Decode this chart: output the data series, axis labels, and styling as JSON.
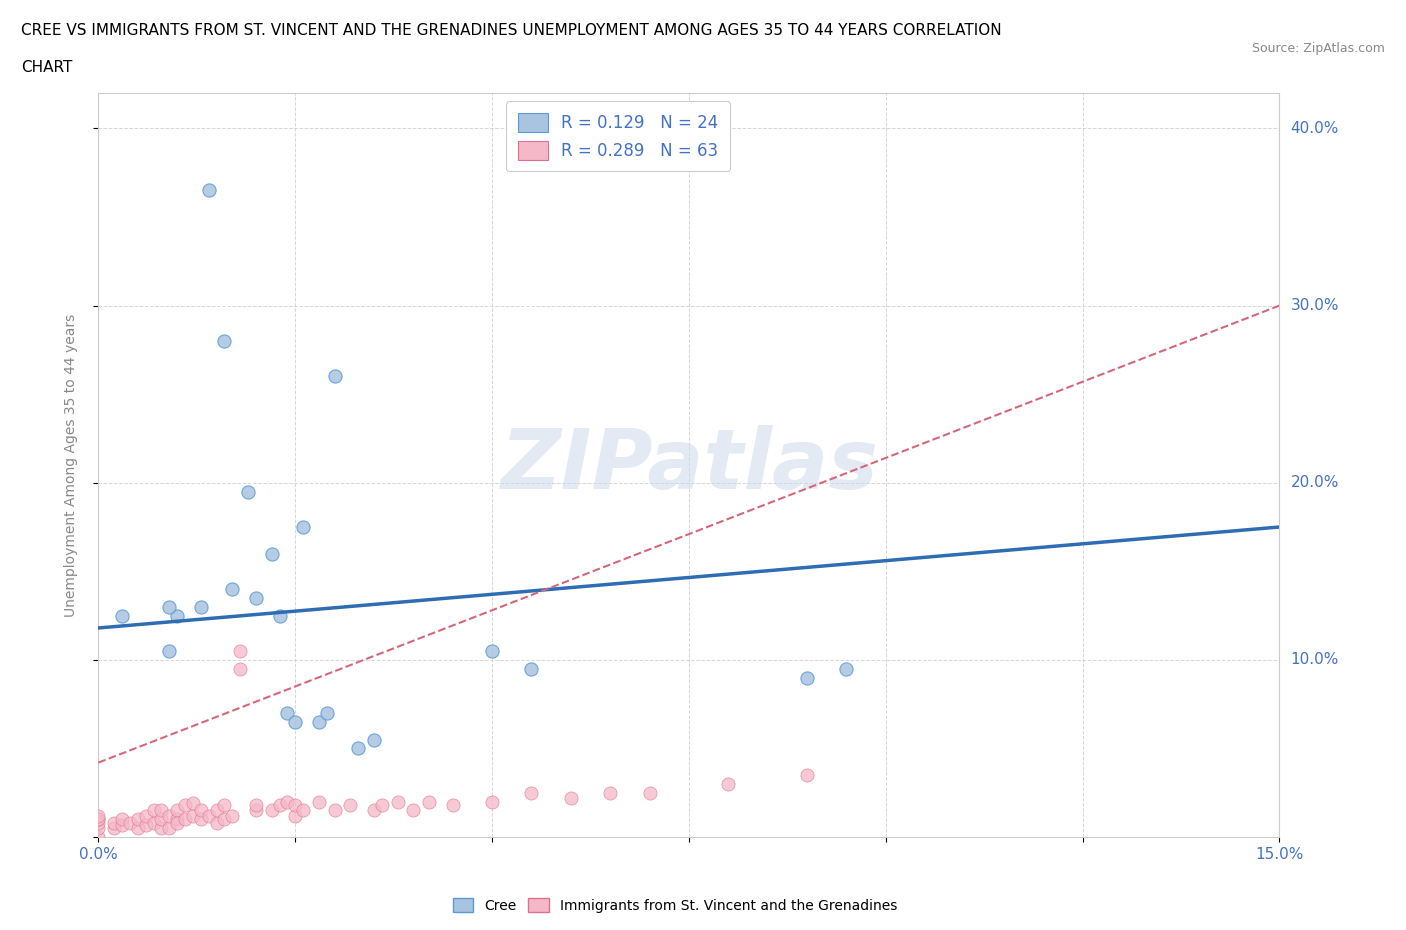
{
  "title_line1": "CREE VS IMMIGRANTS FROM ST. VINCENT AND THE GRENADINES UNEMPLOYMENT AMONG AGES 35 TO 44 YEARS CORRELATION",
  "title_line2": "CHART",
  "source_text": "Source: ZipAtlas.com",
  "ylabel": "Unemployment Among Ages 35 to 44 years",
  "xlim": [
    0,
    0.15
  ],
  "ylim": [
    0,
    0.42
  ],
  "x_ticks": [
    0,
    0.025,
    0.05,
    0.075,
    0.1,
    0.125,
    0.15
  ],
  "y_ticks": [
    0,
    0.1,
    0.2,
    0.3,
    0.4
  ],
  "cree_color": "#a8c4e0",
  "cree_edge_color": "#5b9bd5",
  "svg_color": "#f4b8c8",
  "svg_edge_color": "#e07090",
  "trend_cree_color": "#2e6db4",
  "trend_svg_color": "#d4687a",
  "cree_R": 0.129,
  "cree_N": 24,
  "svg_R": 0.289,
  "svg_N": 63,
  "watermark": "ZIPatlas",
  "legend_label_cree": "Cree",
  "legend_label_svg": "Immigrants from St. Vincent and the Grenadines",
  "tick_label_color": "#4472c4",
  "cree_scatter_x": [
    0.003,
    0.01,
    0.013,
    0.014,
    0.016,
    0.017,
    0.019,
    0.02,
    0.022,
    0.023,
    0.024,
    0.025,
    0.026,
    0.028,
    0.029,
    0.03,
    0.033,
    0.035,
    0.09,
    0.095,
    0.05,
    0.055,
    0.009,
    0.009
  ],
  "cree_scatter_y": [
    0.125,
    0.125,
    0.13,
    0.365,
    0.28,
    0.14,
    0.195,
    0.135,
    0.16,
    0.125,
    0.07,
    0.065,
    0.175,
    0.065,
    0.07,
    0.26,
    0.05,
    0.055,
    0.09,
    0.095,
    0.105,
    0.095,
    0.13,
    0.105
  ],
  "svg_scatter_x": [
    0.0,
    0.0,
    0.0,
    0.0,
    0.0,
    0.0,
    0.002,
    0.002,
    0.003,
    0.003,
    0.004,
    0.005,
    0.005,
    0.006,
    0.006,
    0.007,
    0.007,
    0.008,
    0.008,
    0.008,
    0.009,
    0.009,
    0.01,
    0.01,
    0.01,
    0.011,
    0.011,
    0.012,
    0.012,
    0.013,
    0.013,
    0.014,
    0.015,
    0.015,
    0.016,
    0.016,
    0.017,
    0.018,
    0.018,
    0.02,
    0.02,
    0.022,
    0.023,
    0.024,
    0.025,
    0.025,
    0.026,
    0.028,
    0.03,
    0.032,
    0.035,
    0.036,
    0.038,
    0.04,
    0.042,
    0.045,
    0.05,
    0.055,
    0.06,
    0.065,
    0.07,
    0.08,
    0.09
  ],
  "svg_scatter_y": [
    0.0,
    0.005,
    0.008,
    0.01,
    0.01,
    0.012,
    0.005,
    0.008,
    0.007,
    0.01,
    0.008,
    0.005,
    0.01,
    0.007,
    0.012,
    0.008,
    0.015,
    0.005,
    0.01,
    0.015,
    0.005,
    0.012,
    0.01,
    0.015,
    0.008,
    0.01,
    0.018,
    0.012,
    0.019,
    0.01,
    0.015,
    0.012,
    0.008,
    0.015,
    0.01,
    0.018,
    0.012,
    0.095,
    0.105,
    0.015,
    0.018,
    0.015,
    0.018,
    0.02,
    0.012,
    0.018,
    0.015,
    0.02,
    0.015,
    0.018,
    0.015,
    0.018,
    0.02,
    0.015,
    0.02,
    0.018,
    0.02,
    0.025,
    0.022,
    0.025,
    0.025,
    0.03,
    0.035
  ],
  "cree_trend_x": [
    0.0,
    0.15
  ],
  "cree_trend_y": [
    0.118,
    0.175
  ],
  "svg_trend_x": [
    0.0,
    0.15
  ],
  "svg_trend_y": [
    0.042,
    0.3
  ]
}
